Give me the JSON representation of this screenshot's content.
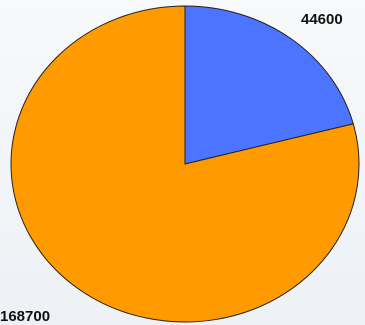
{
  "chart_data": {
    "type": "pie",
    "title": "",
    "slices": [
      {
        "label": "44600",
        "value": 44600,
        "color": "#4C74FF"
      },
      {
        "label": "168700",
        "value": 168700,
        "color": "#FF9B00"
      }
    ],
    "start_angle_deg": 0,
    "legend": false,
    "grid": false
  }
}
